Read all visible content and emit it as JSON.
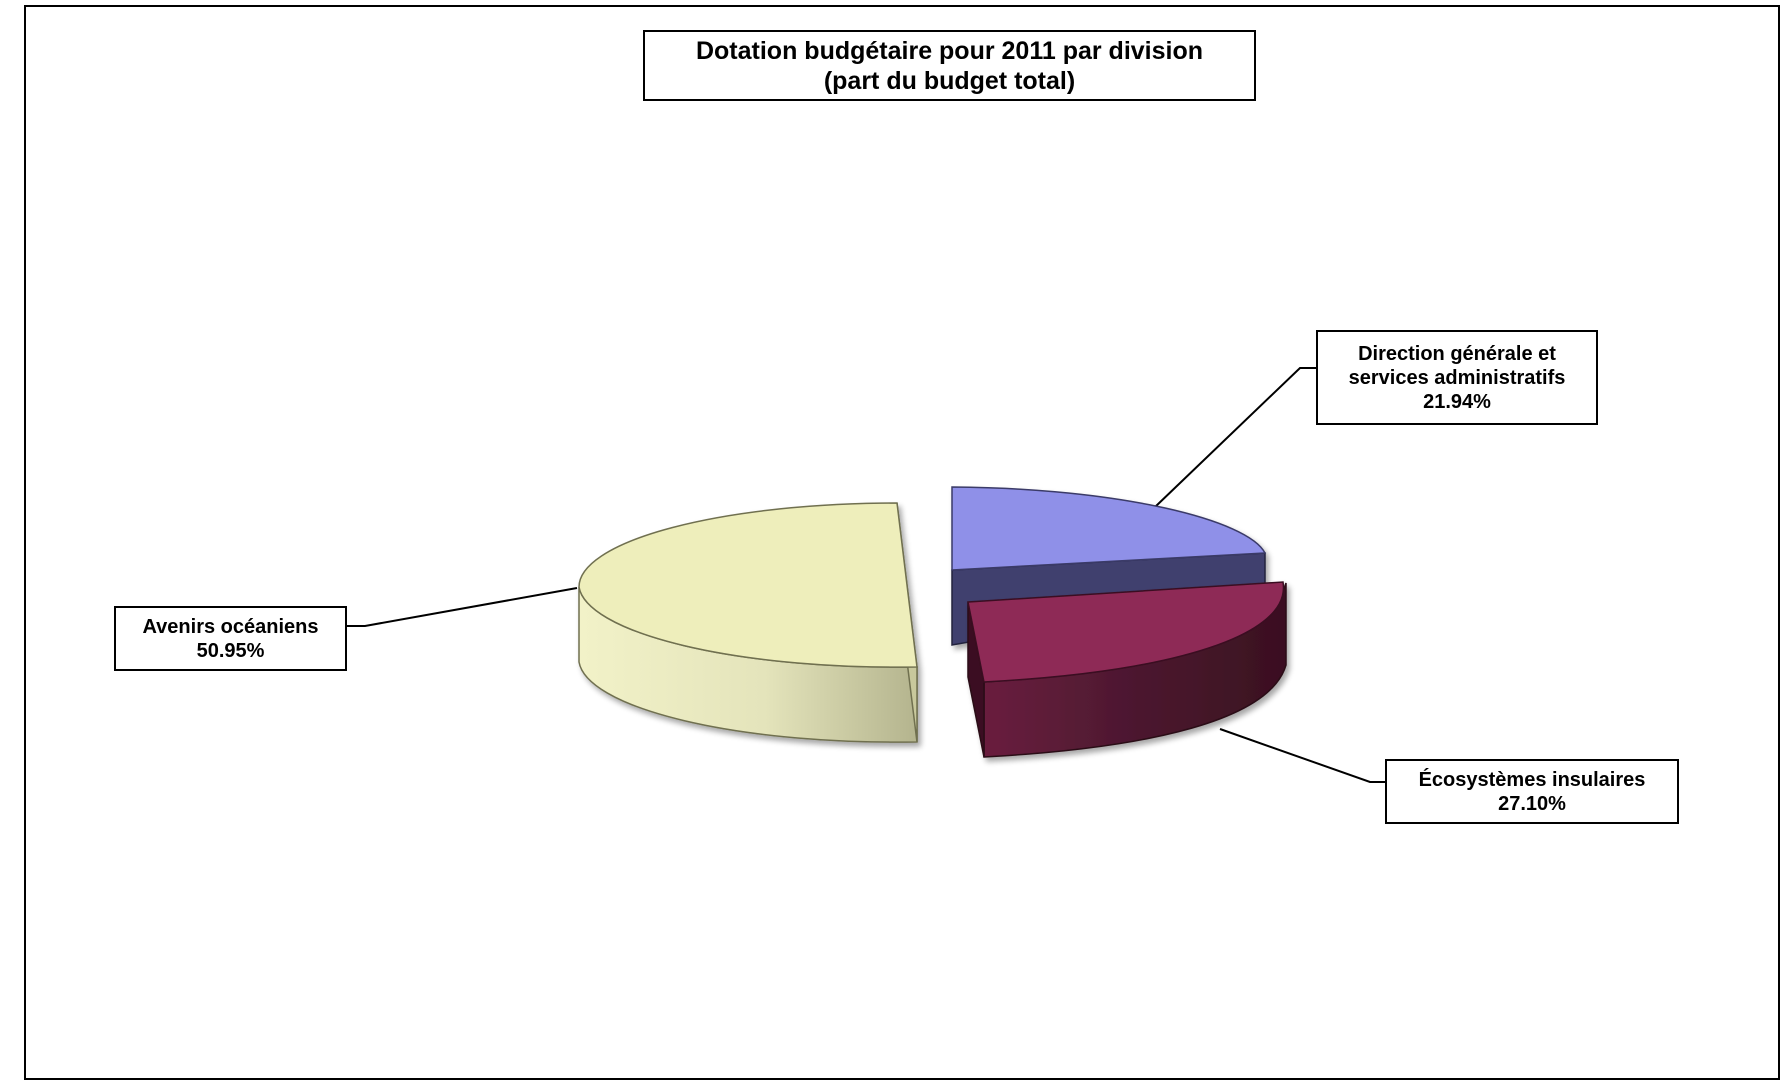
{
  "chart_data": {
    "type": "pie",
    "title": "Dotation budgétaire pour 2011 par division",
    "subtitle": "(part du budget total)",
    "slices": [
      {
        "label_lines": [
          "Direction générale et",
          "services administratifs"
        ],
        "value": 21.94,
        "value_label": "21.94%",
        "top_color": "#8f90e8",
        "side_color": "#3f3f6e"
      },
      {
        "label_lines": [
          "Écosystèmes insulaires"
        ],
        "value": 27.1,
        "value_label": "27.10%",
        "top_color": "#8e2b57",
        "side_color": "#4a1528"
      },
      {
        "label_lines": [
          "Avenirs océaniens"
        ],
        "value": 50.95,
        "value_label": "50.95%",
        "top_color": "#eeeebb",
        "side_color": "#c9c9a0"
      }
    ],
    "style": "3D exploded pie",
    "legend": "data labels with leader lines"
  }
}
